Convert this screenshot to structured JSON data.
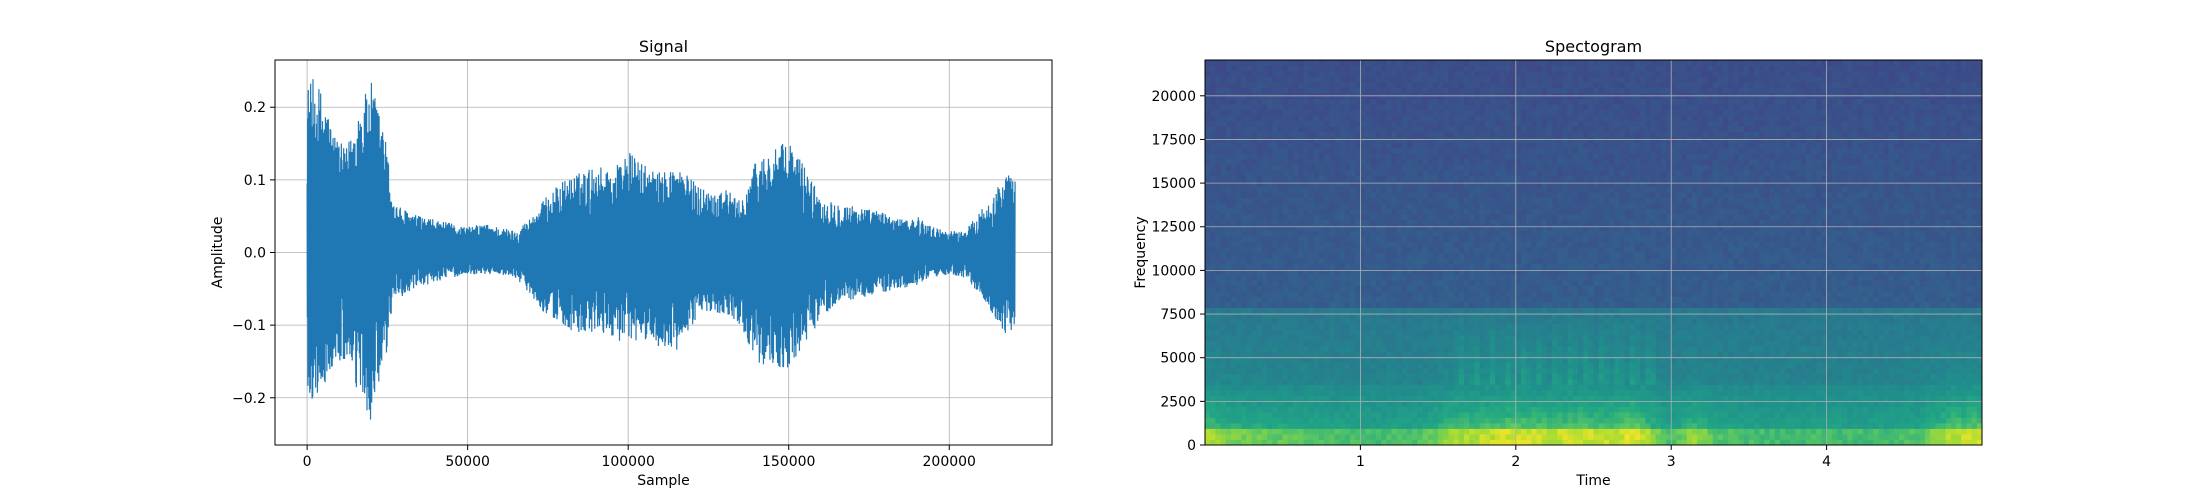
{
  "chart_data": [
    {
      "type": "line",
      "title": "Signal",
      "xlabel": "Sample",
      "ylabel": "Amplitude",
      "xlim": [
        -10000,
        232000
      ],
      "ylim": [
        -0.265,
        0.265
      ],
      "xticks": [
        0,
        50000,
        100000,
        150000,
        200000
      ],
      "xtick_labels": [
        "0",
        "50000",
        "100000",
        "150000",
        "200000"
      ],
      "yticks": [
        -0.2,
        -0.1,
        0.0,
        0.1,
        0.2
      ],
      "ytick_labels": [
        "−0.2",
        "−0.1",
        "0.0",
        "0.1",
        "0.2"
      ],
      "grid": true,
      "color": "#1f77b4",
      "series": [
        {
          "x_start": 0,
          "x_end": 220500,
          "envelope": {
            "x": [
              0,
              2000,
              5000,
              8000,
              12000,
              16000,
              20000,
              24000,
              27000,
              30000,
              35000,
              40000,
              45000,
              50000,
              55000,
              60000,
              65000,
              70000,
              75000,
              80000,
              85000,
              90000,
              95000,
              100000,
              105000,
              110000,
              115000,
              120000,
              125000,
              130000,
              135000,
              140000,
              145000,
              150000,
              155000,
              160000,
              165000,
              170000,
              175000,
              180000,
              185000,
              190000,
              195000,
              200000,
              205000,
              210000,
              215000,
              218000,
              220500
            ],
            "upper": [
              0.23,
              0.24,
              0.22,
              0.17,
              0.14,
              0.2,
              0.235,
              0.17,
              0.07,
              0.06,
              0.05,
              0.045,
              0.04,
              0.035,
              0.04,
              0.035,
              0.03,
              0.05,
              0.08,
              0.1,
              0.11,
              0.12,
              0.115,
              0.14,
              0.12,
              0.11,
              0.12,
              0.1,
              0.085,
              0.09,
              0.07,
              0.13,
              0.14,
              0.155,
              0.12,
              0.075,
              0.07,
              0.065,
              0.06,
              0.055,
              0.045,
              0.05,
              0.035,
              0.03,
              0.03,
              0.06,
              0.09,
              0.11,
              0.1
            ],
            "lower": [
              -0.22,
              -0.2,
              -0.19,
              -0.16,
              -0.15,
              -0.2,
              -0.235,
              -0.17,
              -0.06,
              -0.06,
              -0.05,
              -0.04,
              -0.035,
              -0.03,
              -0.03,
              -0.03,
              -0.035,
              -0.06,
              -0.09,
              -0.1,
              -0.12,
              -0.11,
              -0.115,
              -0.13,
              -0.12,
              -0.13,
              -0.14,
              -0.1,
              -0.08,
              -0.085,
              -0.1,
              -0.15,
              -0.16,
              -0.16,
              -0.13,
              -0.09,
              -0.07,
              -0.065,
              -0.06,
              -0.055,
              -0.05,
              -0.045,
              -0.035,
              -0.03,
              -0.035,
              -0.06,
              -0.1,
              -0.115,
              -0.1
            ]
          }
        }
      ]
    },
    {
      "type": "heatmap",
      "title": "Spectogram",
      "xlabel": "Time",
      "ylabel": "Frequency",
      "xlim": [
        0,
        5.0
      ],
      "ylim": [
        0,
        22050
      ],
      "xticks": [
        1,
        2,
        3,
        4
      ],
      "xtick_labels": [
        "1",
        "2",
        "3",
        "4"
      ],
      "yticks": [
        0,
        2500,
        5000,
        7500,
        10000,
        12500,
        15000,
        17500,
        20000
      ],
      "ytick_labels": [
        "0",
        "2500",
        "5000",
        "7500",
        "10000",
        "12500",
        "15000",
        "17500",
        "20000"
      ],
      "grid": true,
      "colormap": "viridis",
      "energy_profile": {
        "time": [
          0,
          0.15,
          0.3,
          0.5,
          0.8,
          1.1,
          1.4,
          1.6,
          1.8,
          2.0,
          2.2,
          2.4,
          2.6,
          2.75,
          2.85,
          3.0,
          3.15,
          3.3,
          3.6,
          4.0,
          4.3,
          4.6,
          4.8,
          5.0
        ],
        "level": [
          0.85,
          0.7,
          0.65,
          0.6,
          0.55,
          0.5,
          0.55,
          0.8,
          0.85,
          0.9,
          0.85,
          0.9,
          0.85,
          0.95,
          0.8,
          0.5,
          0.75,
          0.55,
          0.5,
          0.5,
          0.5,
          0.55,
          0.85,
          0.9
        ]
      }
    }
  ]
}
